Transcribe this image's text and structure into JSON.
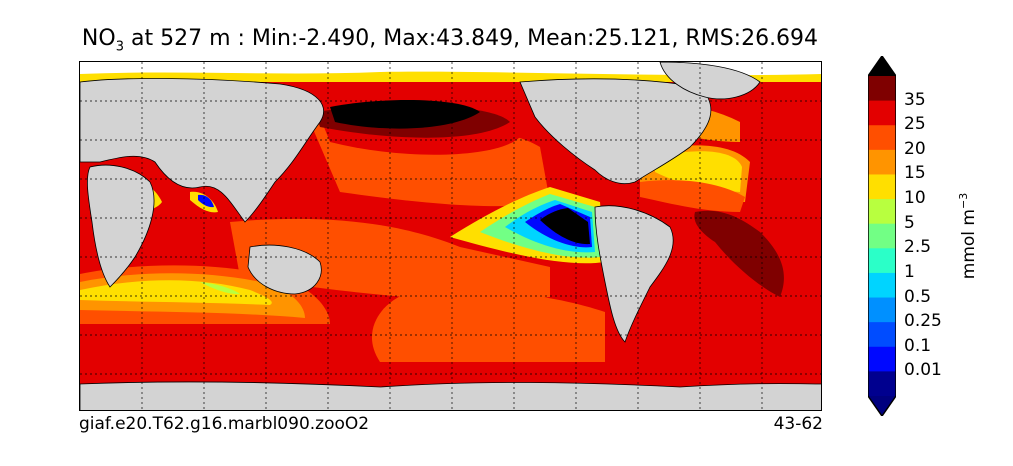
{
  "title": {
    "species": "NO",
    "subscript": "3",
    "text": " at 527 m : Min:-2.490, Max:43.849, Mean:25.121, RMS:26.694"
  },
  "footer": {
    "run_name": "giaf.e20.T62.g16.marbl090.zooO2",
    "years": "43-62"
  },
  "colorbar": {
    "units_base": "mmol m",
    "units_exponent": "−3",
    "ticks": [
      "35",
      "25",
      "20",
      "15",
      "10",
      "5",
      "2.5",
      "1",
      "0.5",
      "0.25",
      "0.1",
      "0.01"
    ],
    "colors_top_to_bottom": [
      "#7f0000",
      "#e30000",
      "#ff4f00",
      "#ff9400",
      "#ffdf00",
      "#b8ff3f",
      "#72ff85",
      "#2bffc8",
      "#00d4ff",
      "#0090ff",
      "#004cff",
      "#0008ff",
      "#00008f"
    ],
    "under_color": "#00007f",
    "over_color": "#000000"
  },
  "map_colors": {
    "land": "#d3d3d3",
    "missing": "#ffffff",
    "below_min": "#000000",
    "grid": "#000000"
  }
}
